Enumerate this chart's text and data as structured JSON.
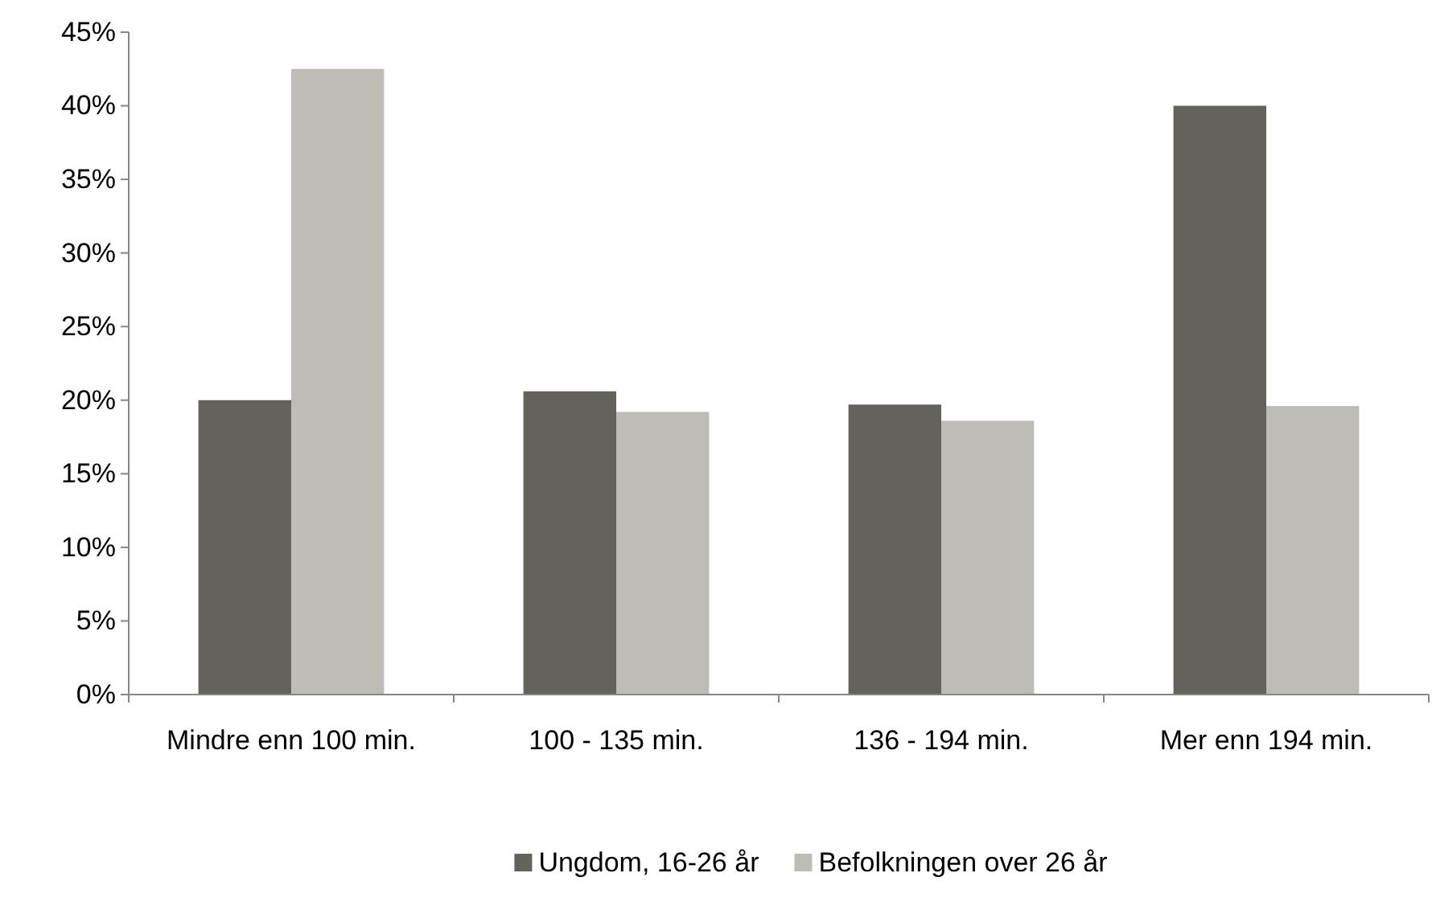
{
  "chart_data": {
    "type": "bar",
    "categories": [
      "Mindre enn 100 min.",
      "100 - 135 min.",
      "136 - 194 min.",
      "Mer enn 194 min."
    ],
    "series": [
      {
        "name": "Ungdom, 16-26 år",
        "color": "#63625d",
        "values": [
          20.0,
          20.6,
          19.7,
          40.0
        ]
      },
      {
        "name": "Befolkningen over 26 år",
        "color": "#bdbcb6",
        "values": [
          42.5,
          19.2,
          18.6,
          19.6
        ]
      }
    ],
    "ylim": [
      0,
      45
    ],
    "yticks": [
      {
        "value": 0,
        "label": "0%"
      },
      {
        "value": 5,
        "label": "5%"
      },
      {
        "value": 10,
        "label": "10%"
      },
      {
        "value": 15,
        "label": "15%"
      },
      {
        "value": 20,
        "label": "20%"
      },
      {
        "value": 25,
        "label": "25%"
      },
      {
        "value": 30,
        "label": "30%"
      },
      {
        "value": 35,
        "label": "35%"
      },
      {
        "value": 40,
        "label": "40%"
      },
      {
        "value": 45,
        "label": "45%"
      }
    ],
    "grid": false,
    "legend": "bottom"
  }
}
